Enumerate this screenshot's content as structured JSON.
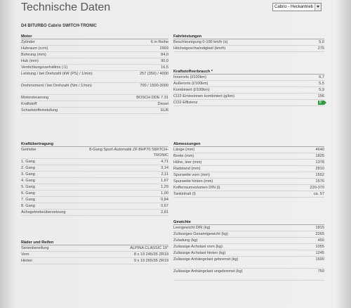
{
  "title": "Technische Daten",
  "variant_select": "Cabrio - Heckantrieb",
  "model": "D4 BITURBO Cabrio SWITCH-TRONIC",
  "motor": {
    "title": "Motor",
    "rows": [
      {
        "label": "Zylinder",
        "value": "6 in Reihe"
      },
      {
        "label": "Hubraum (ccm)",
        "value": "2993"
      },
      {
        "label": "Bohrung (mm)",
        "value": "84,0"
      },
      {
        "label": "Hub (mm)",
        "value": "90,0"
      },
      {
        "label": "Verdichtungsverhältnis (:1)",
        "value": "16,5"
      },
      {
        "label": "Leistung / bei Drehzahl (kW (PS) / 1/min)",
        "value": "257 (350) / 4000"
      },
      {
        "label": "Drehmoment / bei Drehzahl (Nm / 1/min)",
        "value": "700 / 1500-3000"
      },
      {
        "label": "Motorsteuerung",
        "value": "BOSCH DDE 7.31"
      },
      {
        "label": "Kraftstoff",
        "value": "Diesel"
      },
      {
        "label": "Schadstoffeinstufung",
        "value": "EU6"
      }
    ]
  },
  "fahrleistungen": {
    "title": "Fahrleistungen",
    "rows": [
      {
        "label": "Beschleunigung 0-100 km/h (s)",
        "value": "5,0"
      },
      {
        "label": "Höchstgeschwindigkeit (km/h)",
        "value": "275"
      }
    ]
  },
  "kraftstoff": {
    "title": "Kraftstoffverbrauch *",
    "rows": [
      {
        "label": "Innerorts (l/100km)",
        "value": "6,7"
      },
      {
        "label": "Außerorts (l/100km)",
        "value": "5,5"
      },
      {
        "label": "Kombiniert (l/100km)",
        "value": "5,9"
      },
      {
        "label": "CO2-Emissionen kombiniert (g/km)",
        "value": "156"
      },
      {
        "label": "CO2-Effizienz",
        "value": "B"
      }
    ]
  },
  "kraftuebertragung": {
    "title": "Kraftübertragung",
    "rows": [
      {
        "label": "Getriebe",
        "value": "8-Gang Sport-Automatik ZF 8HP70 SWITCH-TRONIC"
      },
      {
        "label": "1. Gang",
        "value": "4,71"
      },
      {
        "label": "2. Gang",
        "value": "3,14"
      },
      {
        "label": "3. Gang",
        "value": "2,11"
      },
      {
        "label": "4. Gang",
        "value": "1,67"
      },
      {
        "label": "5. Gang",
        "value": "1,29"
      },
      {
        "label": "6. Gang",
        "value": "1,00"
      },
      {
        "label": "7. Gang",
        "value": "0,84"
      },
      {
        "label": "8. Gang",
        "value": "0,67"
      },
      {
        "label": "Achsgetriebeübersetzung",
        "value": "2,81"
      }
    ]
  },
  "abmessungen": {
    "title": "Abmessungen",
    "rows": [
      {
        "label": "Länge (mm)",
        "value": "4640"
      },
      {
        "label": "Breite (mm)",
        "value": "1825"
      },
      {
        "label": "Höhe, leer (mm)",
        "value": "1378"
      },
      {
        "label": "Radstand (mm)",
        "value": "2810"
      },
      {
        "label": "Spurweite vorn (mm)",
        "value": "1552"
      },
      {
        "label": "Spurweite hinten (mm)",
        "value": "1576"
      },
      {
        "label": "Kofferraumvolumen DIN (l)",
        "value": "220-370"
      },
      {
        "label": "Tankinhalt (l)",
        "value": "ca. 57"
      }
    ]
  },
  "raeder": {
    "title": "Räder und Reifen",
    "rows": [
      {
        "label": "Serienbereifung",
        "value": "ALPINA CLASSIC 19\""
      },
      {
        "label": "Vorn",
        "value": "8 x 19 245/35 ZR19"
      },
      {
        "label": "Hinten",
        "value": "9 x 19 265/35 ZR19"
      }
    ]
  },
  "gewichte": {
    "title": "Gewichte",
    "rows": [
      {
        "label": "Leergewicht DIN (kg)",
        "value": "1815"
      },
      {
        "label": "Zulässiges Gesamtgewicht (kg)",
        "value": "2265"
      },
      {
        "label": "Zuladung (kg)",
        "value": "450"
      },
      {
        "label": "Zulässige Achslast vorn (kg)",
        "value": "1055"
      },
      {
        "label": "Zulässige Achslast hinten (kg)",
        "value": "1245"
      },
      {
        "label": "Zulässige Anhängelast gebremst (kg)",
        "value": "1600"
      },
      {
        "label": "Zulässige Anhängelast ungebremst (kg)",
        "value": "750"
      }
    ]
  }
}
